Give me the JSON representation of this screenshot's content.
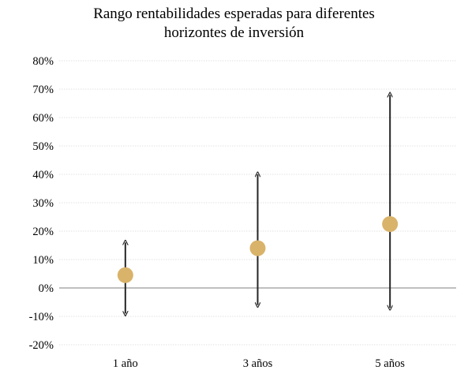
{
  "chart_data": {
    "type": "scatter",
    "title_lines": [
      "Rango rentabilidades esperadas para diferentes",
      "horizontes de inversión"
    ],
    "categories": [
      "1 año",
      "3 años",
      "5 años"
    ],
    "expected": [
      4.5,
      14,
      22.5
    ],
    "range_low": [
      -9,
      -6,
      -7
    ],
    "range_high": [
      16,
      40,
      68
    ],
    "y_ticks": [
      80,
      70,
      60,
      50,
      40,
      30,
      20,
      10,
      0,
      -10,
      -20
    ],
    "y_tick_labels": [
      "80%",
      "70%",
      "60%",
      "50%",
      "40%",
      "30%",
      "20%",
      "10%",
      "0%",
      "-10%",
      "-20%"
    ],
    "ylim": [
      -20,
      80
    ],
    "grid": true,
    "colors": {
      "point": "#D9B36A",
      "arrow": "#262626",
      "grid": "#D9D9D9",
      "zero_line": "#7F7F7F"
    }
  }
}
